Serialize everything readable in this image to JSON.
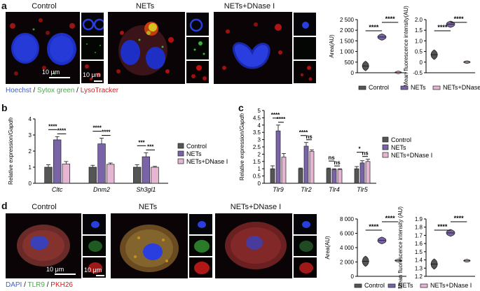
{
  "panel_a": {
    "label": "a",
    "col_titles": [
      "Control",
      "NETs",
      "NETs+DNase I"
    ],
    "scale_main": "10 μm",
    "scale_thumb": "10 μm",
    "stain_legend": [
      {
        "text": "Hoechst",
        "color": "#3b5fd6"
      },
      {
        "text": " / ",
        "color": "#222222"
      },
      {
        "text": "Sytox green",
        "color": "#4aa84a"
      },
      {
        "text": " / ",
        "color": "#222222"
      },
      {
        "text": "LysoTracker",
        "color": "#d62020"
      }
    ]
  },
  "panel_d": {
    "label": "d",
    "col_titles": [
      "Control",
      "NETs",
      "NETs+DNase I"
    ],
    "scale_main": "10 μm",
    "scale_thumb": "10 μm",
    "stain_legend": [
      {
        "text": "DAPI",
        "color": "#3b5fd6"
      },
      {
        "text": " / ",
        "color": "#222222"
      },
      {
        "text": "TLR9",
        "color": "#4aa84a"
      },
      {
        "text": " / ",
        "color": "#222222"
      },
      {
        "text": "PKH26",
        "color": "#d62020"
      }
    ]
  },
  "panel_b": {
    "label": "b"
  },
  "panel_c": {
    "label": "c"
  },
  "colors": {
    "control": "#555555",
    "nets": "#7a64a8",
    "dnase": "#e5b5d2"
  },
  "legend_groups": [
    "Control",
    "NETs",
    "NETs+DNase I"
  ],
  "chart_data": [
    {
      "id": "a_area",
      "type": "violin",
      "ylabel": "Area(AU)",
      "ylim": [
        0,
        2500
      ],
      "yticks": [
        "0",
        "500",
        "1 000",
        "1 500",
        "2 000",
        "2 500"
      ],
      "groups": [
        "Control",
        "NETs",
        "NETs+DNase I"
      ],
      "centers": [
        320,
        1680,
        15
      ],
      "sig": [
        {
          "pair": [
            0,
            1
          ],
          "text": "****"
        },
        {
          "pair": [
            1,
            2
          ],
          "text": "****"
        }
      ]
    },
    {
      "id": "a_mfi",
      "type": "violin",
      "ylabel": "Mean fluorescence intensity(AU)",
      "ylim": [
        -0.5,
        2.0
      ],
      "yticks": [
        "-0.5",
        "0",
        "0.5",
        "1.0",
        "1.5",
        "2.0"
      ],
      "groups": [
        "Control",
        "NETs",
        "NETs+DNase I"
      ],
      "centers": [
        0.35,
        1.78,
        0.0
      ],
      "sig": [
        {
          "pair": [
            0,
            1
          ],
          "text": "****"
        },
        {
          "pair": [
            1,
            2
          ],
          "text": "****"
        }
      ]
    },
    {
      "id": "b",
      "type": "bar",
      "ylabel": "Relative expression/Gapdh",
      "ylim": [
        0,
        4
      ],
      "yticks": [
        "0",
        "1",
        "2",
        "3",
        "4"
      ],
      "categories": [
        "Cltc",
        "Dnm2",
        "Sh3gl1"
      ],
      "series": [
        {
          "name": "Control",
          "values": [
            1.0,
            1.0,
            1.0
          ],
          "err": [
            0.15,
            0.12,
            0.15
          ]
        },
        {
          "name": "NETs",
          "values": [
            2.7,
            2.45,
            1.65
          ],
          "err": [
            0.2,
            0.35,
            0.25
          ]
        },
        {
          "name": "NETs+DNase I",
          "values": [
            1.2,
            1.18,
            1.0
          ],
          "err": [
            0.15,
            0.08,
            0.05
          ]
        }
      ],
      "sig": [
        {
          "cat": 0,
          "pair": [
            0,
            1
          ],
          "text": "****"
        },
        {
          "cat": 0,
          "pair": [
            1,
            2
          ],
          "text": "****"
        },
        {
          "cat": 1,
          "pair": [
            0,
            1
          ],
          "text": "****"
        },
        {
          "cat": 1,
          "pair": [
            1,
            2
          ],
          "text": "****"
        },
        {
          "cat": 2,
          "pair": [
            0,
            1
          ],
          "text": "***"
        },
        {
          "cat": 2,
          "pair": [
            1,
            2
          ],
          "text": "***"
        }
      ]
    },
    {
      "id": "c",
      "type": "bar",
      "ylabel": "Relative expression/Gapdh",
      "ylim": [
        0,
        5
      ],
      "yticks": [
        "0",
        "0.5",
        "1",
        "1.5",
        "2",
        "2.5",
        "3",
        "3.5",
        "4",
        "4.5",
        "5"
      ],
      "categories": [
        "Tlr9",
        "Tlr2",
        "Tlr4",
        "Tlr5"
      ],
      "series": [
        {
          "name": "Control",
          "values": [
            1.0,
            1.0,
            1.0,
            1.0
          ],
          "err": [
            0.2,
            0.05,
            0.05,
            0.15
          ]
        },
        {
          "name": "NETs",
          "values": [
            3.6,
            2.55,
            0.95,
            1.4
          ],
          "err": [
            0.4,
            0.25,
            0.05,
            0.15
          ]
        },
        {
          "name": "NETs+DNase I",
          "values": [
            1.8,
            2.2,
            0.95,
            1.5
          ],
          "err": [
            0.25,
            0.1,
            0.05,
            0.15
          ]
        }
      ],
      "sig": [
        {
          "cat": 0,
          "pair": [
            0,
            1
          ],
          "text": "****"
        },
        {
          "cat": 0,
          "pair": [
            1,
            2
          ],
          "text": "****"
        },
        {
          "cat": 1,
          "pair": [
            0,
            1
          ],
          "text": "****"
        },
        {
          "cat": 1,
          "pair": [
            1,
            2
          ],
          "text": "ns"
        },
        {
          "cat": 2,
          "pair": [
            0,
            1
          ],
          "text": "ns"
        },
        {
          "cat": 2,
          "pair": [
            1,
            2
          ],
          "text": "ns"
        },
        {
          "cat": 3,
          "pair": [
            0,
            1
          ],
          "text": "*"
        },
        {
          "cat": 3,
          "pair": [
            1,
            2
          ],
          "text": "ns"
        }
      ]
    },
    {
      "id": "d_area",
      "type": "violin",
      "ylabel": "Area(AU)",
      "ylim": [
        0,
        8000
      ],
      "yticks": [
        "0",
        "2 000",
        "4 000",
        "6 000",
        "8 000"
      ],
      "groups": [
        "Control",
        "NETs",
        "NETs+DNase I"
      ],
      "centers": [
        2100,
        5000,
        2200
      ],
      "sig": [
        {
          "pair": [
            0,
            1
          ],
          "text": "****"
        },
        {
          "pair": [
            1,
            2
          ],
          "text": "****"
        }
      ]
    },
    {
      "id": "d_mfi",
      "type": "violin",
      "ylabel": "Mean fluorescence intensity (AU)",
      "ylim": [
        1.2,
        1.9
      ],
      "yticks": [
        "1.2",
        "1.3",
        "1.4",
        "1.5",
        "1.6",
        "1.7",
        "1.8",
        "1.9"
      ],
      "groups": [
        "Control",
        "NETs",
        "NETs+DNase I"
      ],
      "centers": [
        1.35,
        1.73,
        1.39
      ],
      "sig": [
        {
          "pair": [
            0,
            1
          ],
          "text": "****"
        },
        {
          "pair": [
            1,
            2
          ],
          "text": "****"
        }
      ]
    }
  ]
}
